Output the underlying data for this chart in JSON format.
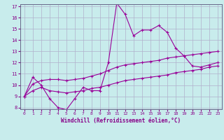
{
  "xlabel": "Windchill (Refroidissement éolien,°C)",
  "bg_color": "#c8ecec",
  "line_color": "#990099",
  "grid_color": "#b0b0cc",
  "axis_color": "#880088",
  "spine_color": "#666688",
  "hours": [
    0,
    1,
    2,
    3,
    4,
    5,
    6,
    7,
    8,
    9,
    10,
    11,
    12,
    13,
    14,
    15,
    16,
    17,
    18,
    19,
    20,
    21,
    22,
    23
  ],
  "main_line": [
    9.0,
    10.7,
    10.0,
    8.8,
    8.0,
    7.8,
    8.8,
    9.8,
    9.5,
    9.5,
    12.0,
    17.3,
    16.3,
    14.4,
    14.9,
    14.9,
    15.3,
    14.7,
    13.3,
    12.6,
    11.7,
    11.6,
    11.8,
    12.0
  ],
  "low_line": [
    9.0,
    9.5,
    9.8,
    9.5,
    9.4,
    9.3,
    9.4,
    9.5,
    9.7,
    9.8,
    10.0,
    10.2,
    10.4,
    10.5,
    10.6,
    10.7,
    10.8,
    10.9,
    11.1,
    11.2,
    11.3,
    11.4,
    11.6,
    11.7
  ],
  "high_line": [
    9.0,
    10.1,
    10.4,
    10.5,
    10.5,
    10.4,
    10.5,
    10.6,
    10.8,
    11.0,
    11.3,
    11.6,
    11.8,
    11.9,
    12.0,
    12.1,
    12.2,
    12.4,
    12.5,
    12.6,
    12.7,
    12.8,
    12.9,
    13.0
  ],
  "ylim_min": 8,
  "ylim_max": 17,
  "yticks": [
    8,
    9,
    10,
    11,
    12,
    13,
    14,
    15,
    16,
    17
  ],
  "xticks": [
    0,
    1,
    2,
    3,
    4,
    5,
    6,
    7,
    8,
    9,
    10,
    11,
    12,
    13,
    14,
    15,
    16,
    17,
    18,
    19,
    20,
    21,
    22,
    23
  ]
}
